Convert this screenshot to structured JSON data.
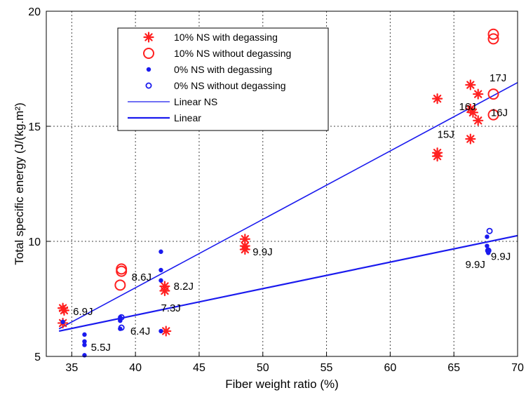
{
  "chart_data": {
    "type": "scatter",
    "xlabel": "Fiber weight ratio (%)",
    "ylabel": "Total specific energy  (J/(kg.m²)",
    "xlim": [
      33,
      70
    ],
    "ylim": [
      5,
      20
    ],
    "xticks": [
      35,
      40,
      45,
      50,
      55,
      60,
      65,
      70
    ],
    "yticks": [
      5,
      10,
      15,
      20
    ],
    "grid": true,
    "legend_position": "top-left",
    "colors": {
      "red": "#ff2020",
      "blue": "#1a1aee"
    },
    "series": [
      {
        "name": "10% NS  with degassing",
        "marker": "star",
        "color": "#ff2020",
        "points": [
          [
            34.3,
            7.1
          ],
          [
            34.4,
            7.0
          ],
          [
            34.3,
            6.45
          ],
          [
            42.3,
            8.05
          ],
          [
            42.3,
            7.85
          ],
          [
            42.4,
            6.1
          ],
          [
            48.6,
            10.1
          ],
          [
            48.6,
            9.8
          ],
          [
            48.6,
            9.65
          ],
          [
            63.7,
            16.2
          ],
          [
            63.7,
            13.85
          ],
          [
            63.7,
            13.7
          ],
          [
            66.3,
            16.8
          ],
          [
            66.3,
            15.75
          ],
          [
            66.5,
            15.6
          ],
          [
            66.3,
            14.45
          ],
          [
            66.9,
            16.4
          ],
          [
            66.9,
            15.25
          ]
        ]
      },
      {
        "name": "10% NS  without degassing",
        "marker": "circle-open-large",
        "color": "#ff2020",
        "points": [
          [
            38.9,
            8.8
          ],
          [
            38.9,
            8.7
          ],
          [
            38.8,
            8.1
          ],
          [
            68.1,
            19.0
          ],
          [
            68.1,
            18.8
          ],
          [
            68.1,
            16.4
          ],
          [
            68.1,
            15.5
          ]
        ]
      },
      {
        "name": "0% NS  with degassing",
        "marker": "dot",
        "color": "#1a1aee",
        "points": [
          [
            34.3,
            6.5
          ],
          [
            36.0,
            5.95
          ],
          [
            36.0,
            5.65
          ],
          [
            36.0,
            5.5
          ],
          [
            36.0,
            5.05
          ],
          [
            38.8,
            6.7
          ],
          [
            38.8,
            6.6
          ],
          [
            38.8,
            6.55
          ],
          [
            38.8,
            6.2
          ],
          [
            42.0,
            9.55
          ],
          [
            42.0,
            8.75
          ],
          [
            42.0,
            8.3
          ],
          [
            42.0,
            6.1
          ],
          [
            67.6,
            10.2
          ],
          [
            67.6,
            9.8
          ],
          [
            67.7,
            9.6
          ],
          [
            67.7,
            9.5
          ]
        ]
      },
      {
        "name": "0% NS  without degassing",
        "marker": "circle-open-small",
        "color": "#1a1aee",
        "points": [
          [
            38.9,
            6.7
          ],
          [
            38.9,
            6.25
          ],
          [
            67.8,
            10.45
          ],
          [
            67.7,
            9.6
          ]
        ]
      },
      {
        "name": "Linear NS",
        "marker": "line-thin",
        "color": "#1a1aee",
        "line": [
          [
            34.0,
            6.2
          ],
          [
            70.0,
            16.9
          ]
        ]
      },
      {
        "name": "Linear",
        "marker": "line-thick",
        "color": "#1a1aee",
        "line": [
          [
            34.0,
            6.1
          ],
          [
            70.0,
            10.25
          ]
        ]
      }
    ],
    "annotations": [
      {
        "text": "6.9J",
        "x": 35.1,
        "y": 6.95
      },
      {
        "text": "5.5J",
        "x": 36.5,
        "y": 5.4
      },
      {
        "text": "6.4J",
        "x": 39.6,
        "y": 6.1
      },
      {
        "text": "8.6J",
        "x": 39.7,
        "y": 8.45
      },
      {
        "text": "8.2J",
        "x": 43.0,
        "y": 8.05
      },
      {
        "text": "7.3J",
        "x": 42.0,
        "y": 7.1
      },
      {
        "text": "9.9J",
        "x": 49.2,
        "y": 9.55
      },
      {
        "text": "17J",
        "x": 67.8,
        "y": 17.1
      },
      {
        "text": "16J",
        "x": 65.4,
        "y": 15.85
      },
      {
        "text": "16J",
        "x": 67.9,
        "y": 15.6
      },
      {
        "text": "15J",
        "x": 63.7,
        "y": 14.65
      },
      {
        "text": "9.9J",
        "x": 67.9,
        "y": 9.35
      },
      {
        "text": "9.9J",
        "x": 65.9,
        "y": 9.0
      }
    ]
  }
}
